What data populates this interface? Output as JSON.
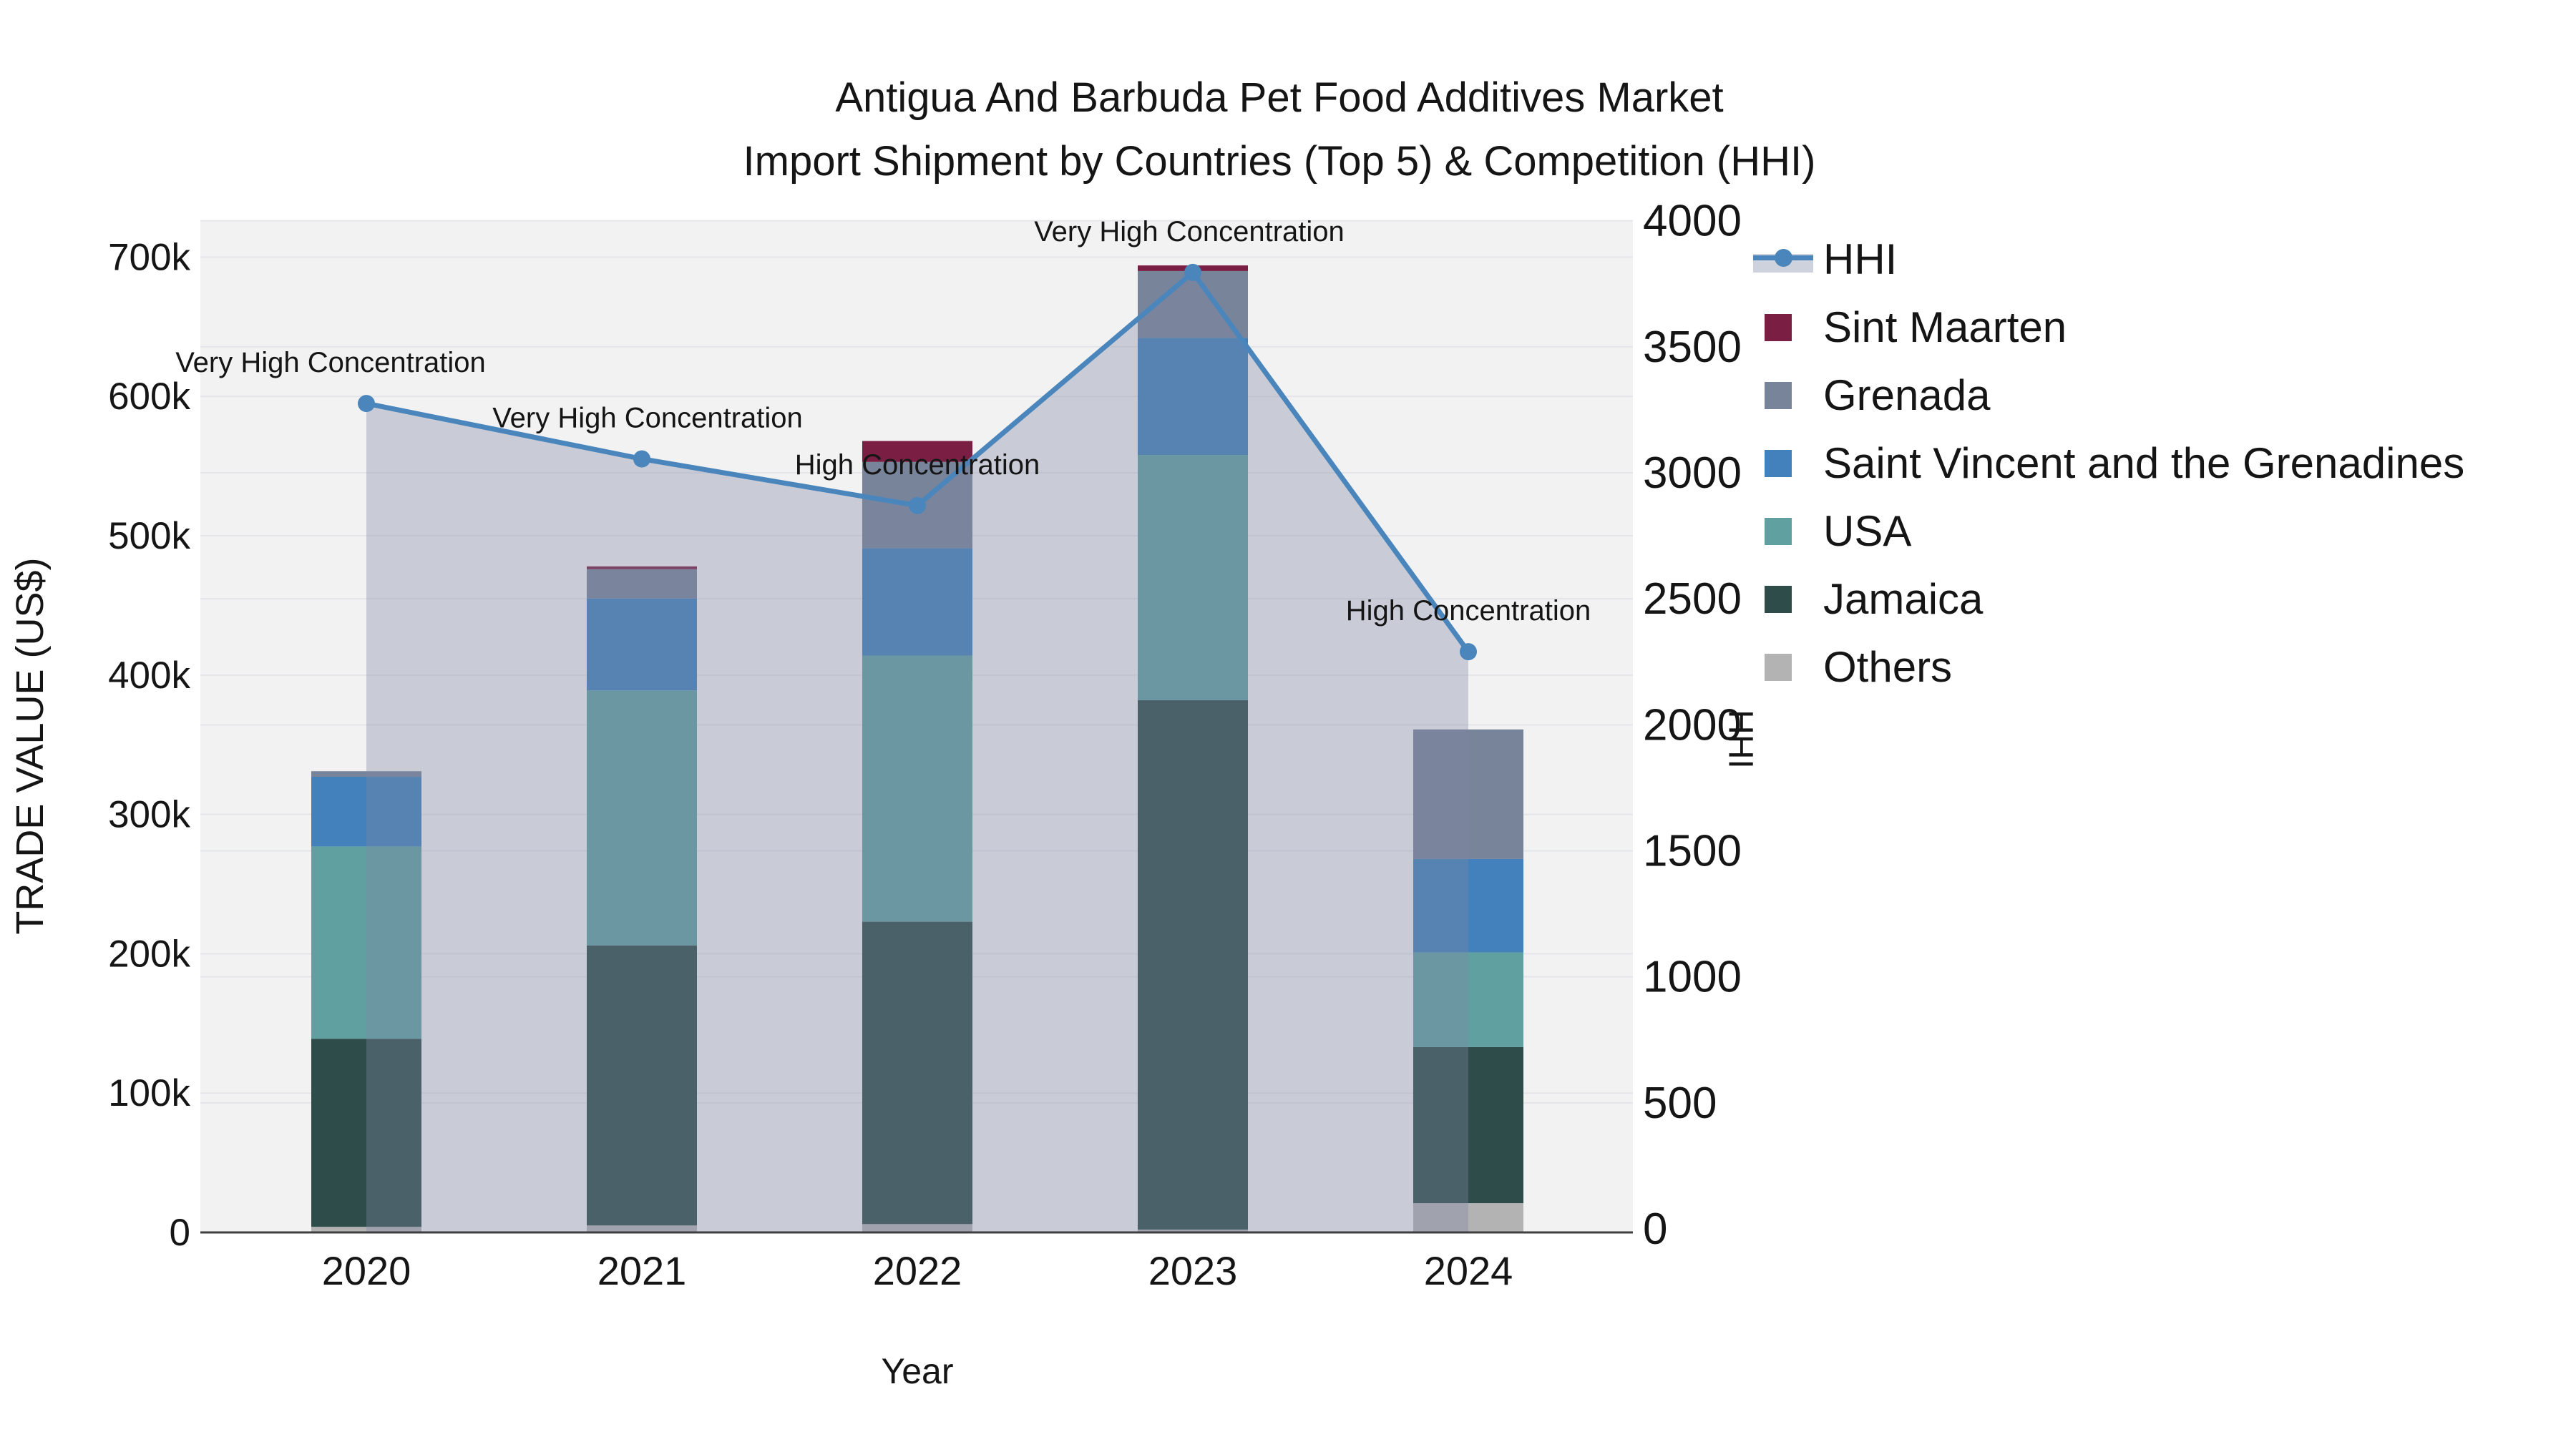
{
  "title": {
    "line1": "Antigua And Barbuda Pet Food Additives Market",
    "line2": "Import Shipment by Countries (Top 5) & Competition (HHI)"
  },
  "axes": {
    "y_left": {
      "title": "TRADE VALUE (US$)",
      "tick_labels": [
        "0",
        "100k",
        "200k",
        "300k",
        "400k",
        "500k",
        "600k",
        "700k"
      ],
      "tick_values": [
        0,
        100000,
        200000,
        300000,
        400000,
        500000,
        600000,
        700000
      ]
    },
    "y_right": {
      "title": "HHI",
      "tick_labels": [
        "0",
        "500",
        "1000",
        "1500",
        "2000",
        "2500",
        "3000",
        "3500",
        "4000"
      ],
      "tick_values": [
        0,
        500,
        1000,
        1500,
        2000,
        2500,
        3000,
        3500,
        4000
      ]
    },
    "x": {
      "title": "Year",
      "categories": [
        "2020",
        "2021",
        "2022",
        "2023",
        "2024"
      ]
    }
  },
  "legend": {
    "items": [
      {
        "label": "HHI",
        "type": "line",
        "color": "#4a86bc"
      },
      {
        "label": "Sint Maarten",
        "type": "bar",
        "color": "#7a1e43"
      },
      {
        "label": "Grenada",
        "type": "bar",
        "color": "#78849a"
      },
      {
        "label": "Saint Vincent and the Grenadines",
        "type": "bar",
        "color": "#4281bb"
      },
      {
        "label": "USA",
        "type": "bar",
        "color": "#61a0a1"
      },
      {
        "label": "Jamaica",
        "type": "bar",
        "color": "#2e4d4a"
      },
      {
        "label": "Others",
        "type": "bar",
        "color": "#b3b3b3"
      }
    ]
  },
  "chart_data": {
    "type": "bar+line",
    "title": "Antigua And Barbuda Pet Food Additives Market — Import Shipment by Countries (Top 5) & Competition (HHI)",
    "categories": [
      "2020",
      "2021",
      "2022",
      "2023",
      "2024"
    ],
    "stack_order_bottom_to_top": [
      "Others",
      "Jamaica",
      "USA",
      "Saint Vincent and the Grenadines",
      "Grenada",
      "Sint Maarten"
    ],
    "series": [
      {
        "name": "Others",
        "color": "#b3b3b3",
        "values": [
          4000,
          5000,
          6000,
          2000,
          21000
        ]
      },
      {
        "name": "Jamaica",
        "color": "#2e4d4a",
        "values": [
          135000,
          201000,
          217000,
          380000,
          112000
        ]
      },
      {
        "name": "USA",
        "color": "#61a0a1",
        "values": [
          138000,
          183000,
          191000,
          176000,
          68000
        ]
      },
      {
        "name": "Saint Vincent and the Grenadines",
        "color": "#4281bb",
        "values": [
          50000,
          66000,
          77000,
          84000,
          67000
        ]
      },
      {
        "name": "Grenada",
        "color": "#78849a",
        "values": [
          4000,
          21000,
          62000,
          48000,
          93000
        ]
      },
      {
        "name": "Sint Maarten",
        "color": "#7a1e43",
        "values": [
          0,
          2000,
          15000,
          4000,
          0
        ]
      }
    ],
    "bar_totals": [
      331000,
      478000,
      568000,
      694000,
      361000
    ],
    "hhi_line": {
      "name": "HHI",
      "color": "#4a86bc",
      "fill": "rgba(125,135,162,0.35)",
      "values": [
        3275,
        3055,
        2870,
        3795,
        2290
      ]
    },
    "annotations": [
      {
        "x": "2020",
        "text": "Very High Concentration",
        "dx": -50
      },
      {
        "x": "2021",
        "text": "Very High Concentration",
        "dx": 8
      },
      {
        "x": "2022",
        "text": "High Concentration",
        "dx": 0
      },
      {
        "x": "2023",
        "text": "Very High Concentration",
        "dx": -5
      },
      {
        "x": "2024",
        "text": "High Concentration",
        "dx": 0
      }
    ],
    "xlabel": "Year",
    "ylabel_left": "TRADE VALUE (US$)",
    "ylabel_right": "HHI",
    "ylim_left": [
      0,
      726400
    ],
    "ylim_right": [
      0,
      4016
    ],
    "grid": true,
    "legend_position": "right",
    "plot_bg": "#f2f2f3",
    "grid_color": "#e4e5e8",
    "axisline_color": "#3f3f3f"
  }
}
